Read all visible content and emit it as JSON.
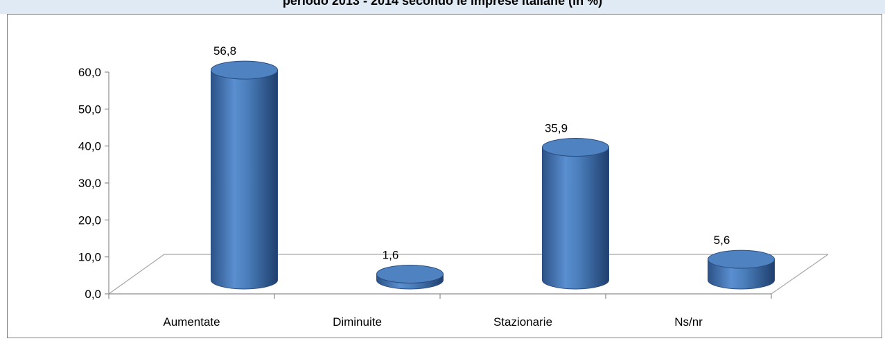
{
  "chart_data": {
    "type": "bar",
    "title": "periodo 2013 - 2014 secondo le imprese italiane (in %)",
    "categories": [
      "Aumentate",
      "Diminuite",
      "Stazionarie",
      "Ns/nr"
    ],
    "values": [
      56.8,
      1.6,
      35.9,
      5.6
    ],
    "value_labels": [
      "56,8",
      "1,6",
      "35,9",
      "5,6"
    ],
    "y_ticks": [
      "0,0",
      "10,0",
      "20,0",
      "30,0",
      "40,0",
      "50,0",
      "60,0"
    ],
    "ylim": [
      0,
      60
    ],
    "xlabel": "",
    "ylabel": "",
    "grid": false,
    "legend": "none",
    "style": "3d-cylinder",
    "bar_color": "#4a7ebb"
  }
}
